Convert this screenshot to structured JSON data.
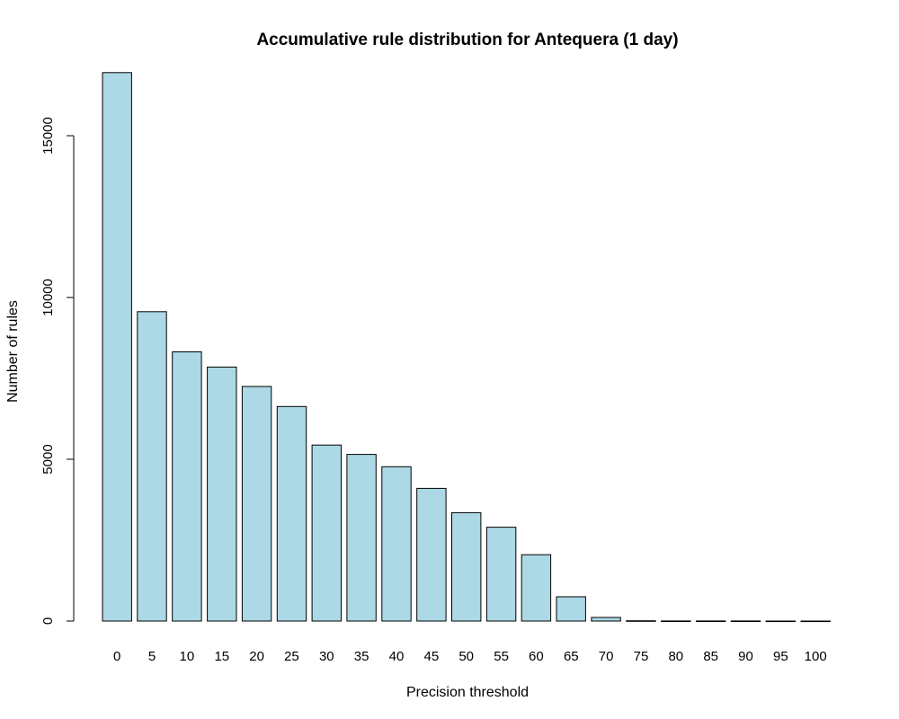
{
  "chart_data": {
    "type": "bar",
    "title": "Accumulative rule distribution for Antequera (1 day)",
    "xlabel": "Precision threshold",
    "ylabel": "Number of rules",
    "categories": [
      "0",
      "5",
      "10",
      "15",
      "20",
      "25",
      "30",
      "35",
      "40",
      "45",
      "50",
      "55",
      "60",
      "65",
      "70",
      "75",
      "80",
      "85",
      "90",
      "95",
      "100"
    ],
    "values": [
      16950,
      9560,
      8320,
      7850,
      7250,
      6630,
      5440,
      5150,
      4770,
      4100,
      3350,
      2900,
      2050,
      750,
      110,
      8,
      4,
      3,
      2,
      1,
      0
    ],
    "ylim": [
      0,
      17000
    ],
    "yticks": [
      0,
      5000,
      10000,
      15000
    ],
    "ytick_labels": [
      "0",
      "5000",
      "10000",
      "15000"
    ],
    "bar_color": "#add8e6",
    "grid": false
  }
}
